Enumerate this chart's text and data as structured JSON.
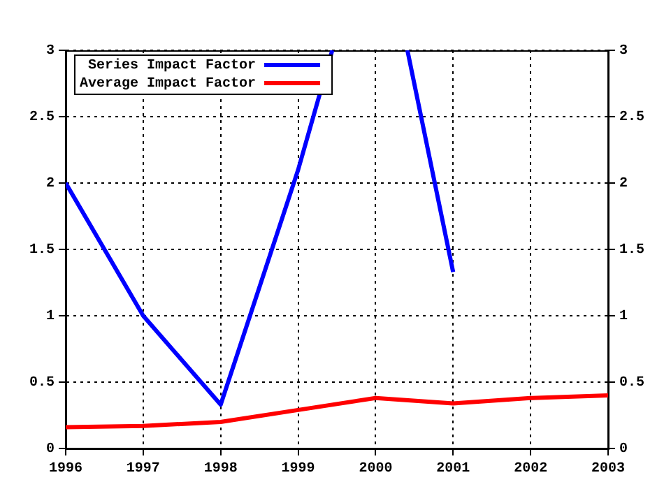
{
  "chart_data": {
    "type": "line",
    "x": [
      1996,
      1997,
      1998,
      1999,
      2000,
      2001,
      2002,
      2003
    ],
    "series": [
      {
        "name": "Series Impact Factor",
        "color": "#0000ff",
        "x": [
          1996,
          1997,
          1998,
          1999,
          1999.44,
          2000,
          2000.41,
          2001
        ],
        "values": [
          2,
          1,
          0.33,
          2.1,
          3,
          null,
          3,
          1.33
        ]
      },
      {
        "name": "Average Impact Factor",
        "color": "#ff0000",
        "values": [
          0.16,
          0.17,
          0.2,
          0.29,
          0.38,
          0.34,
          0.38,
          0.4
        ]
      }
    ],
    "xlim": [
      1996,
      2003
    ],
    "xticks": [
      1996,
      1997,
      1998,
      1999,
      2000,
      2001,
      2002,
      2003
    ],
    "ylim": [
      0,
      3
    ],
    "yticks": [
      0,
      0.5,
      1,
      1.5,
      2,
      2.5,
      3
    ],
    "y2lim": [
      0,
      3
    ],
    "y2ticks": [
      0,
      0.5,
      1,
      1.5,
      2,
      2.5,
      3
    ],
    "grid": true,
    "legend": "top left",
    "marker": "none",
    "line_style": "solid"
  }
}
